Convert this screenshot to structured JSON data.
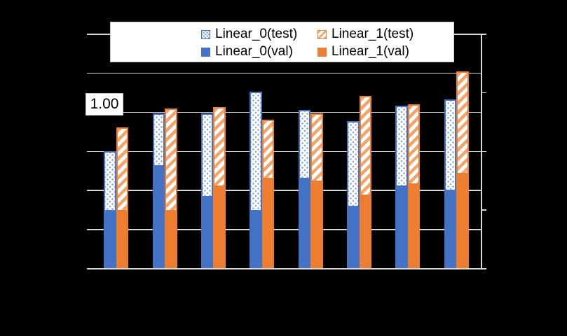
{
  "legend": {
    "entries": [
      {
        "label": "Linear_0(test)",
        "style": "pattern-dots",
        "color": "#4472C4"
      },
      {
        "label": "Linear_1(test)",
        "style": "pattern-stripes",
        "color": "#ED7D31"
      },
      {
        "label": "Linear_0(val)",
        "style": "solid",
        "color": "#4472C4"
      },
      {
        "label": "Linear_1(val)",
        "style": "solid",
        "color": "#ED7D31"
      }
    ]
  },
  "y_axis": {
    "visible_label": "1.00",
    "min": 0,
    "max": 1.5,
    "gridline_step": 0.25,
    "note": "only the 1.00 tick label is visible, shown in a white box"
  },
  "secondary_y_axis": {
    "tick_count": 5,
    "labels_visible": false
  },
  "chart_data": {
    "type": "bar",
    "grouped": true,
    "title": "",
    "xlabel": "",
    "ylabel": "",
    "categories": [
      "",
      "",
      "",
      "",
      "",
      "",
      "",
      ""
    ],
    "series": [
      {
        "name": "Linear_0(test)",
        "fill": "pattern-dots",
        "color": "#4472C4",
        "values": [
          0.75,
          0.99,
          0.99,
          1.13,
          1.01,
          0.94,
          1.04,
          1.08
        ]
      },
      {
        "name": "Linear_0(val)",
        "fill": "solid",
        "color": "#4472C4",
        "values": [
          0.37,
          0.66,
          0.46,
          0.37,
          0.58,
          0.4,
          0.53,
          0.5
        ]
      },
      {
        "name": "Linear_1(test)",
        "fill": "pattern-stripes",
        "color": "#ED7D31",
        "values": [
          0.9,
          1.02,
          1.03,
          0.95,
          0.99,
          1.1,
          1.05,
          1.26
        ]
      },
      {
        "name": "Linear_1(val)",
        "fill": "solid",
        "color": "#ED7D31",
        "values": [
          0.37,
          0.37,
          0.53,
          0.58,
          0.56,
          0.47,
          0.54,
          0.61
        ]
      }
    ],
    "ylim": [
      0,
      1.5
    ],
    "grid": true,
    "legend_position": "top",
    "overlap_note": "val bars are drawn fully overlapping in front of test bars",
    "background": "#000000",
    "gridline_color": "#D9D9D9"
  }
}
